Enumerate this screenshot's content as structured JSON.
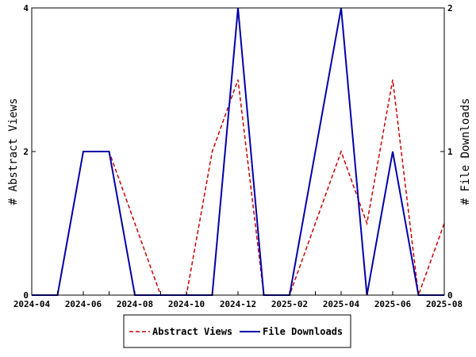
{
  "chart_data": {
    "type": "line",
    "title": "",
    "x": [
      "2024-04",
      "2024-05",
      "2024-06",
      "2024-07",
      "2024-08",
      "2024-09",
      "2024-10",
      "2024-11",
      "2024-12",
      "2025-01",
      "2025-02",
      "2025-03",
      "2025-04",
      "2025-05",
      "2025-06",
      "2025-07",
      "2025-08"
    ],
    "xticks": [
      "2024-04",
      "2024-06",
      "2024-08",
      "2024-10",
      "2024-12",
      "2025-02",
      "2025-04",
      "2025-06",
      "2025-08"
    ],
    "left_axis": {
      "label": "# Abstract Views",
      "ylim": [
        0,
        4
      ],
      "ticks": [
        "0",
        "2",
        "4"
      ]
    },
    "right_axis": {
      "label": "# File Downloads",
      "ylim": [
        0,
        2
      ],
      "ticks": [
        "0",
        "1",
        "2"
      ]
    },
    "series": [
      {
        "name": "Abstract Views",
        "axis": "left",
        "color": "#cc0000",
        "dash": "dashed",
        "values": [
          0,
          0,
          2,
          2,
          1,
          0,
          0,
          2,
          3,
          0,
          0,
          1,
          2,
          1,
          3,
          0,
          1
        ]
      },
      {
        "name": "File Downloads",
        "axis": "right",
        "color": "#0000aa",
        "dash": "solid",
        "values": [
          0,
          0,
          1,
          1,
          0,
          0,
          0,
          0,
          2,
          0,
          0,
          1,
          2,
          0,
          1,
          0,
          0
        ]
      }
    ],
    "legend_position": "bottom"
  }
}
